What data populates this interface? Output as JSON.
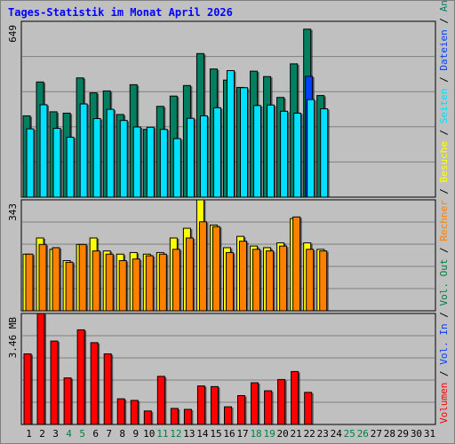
{
  "title": "Tages-Statistik im Monat April 2026",
  "colors": {
    "background": "#c0c0c0",
    "title": "#0000ff",
    "anfragen": "#008060",
    "dateien": "#0040ff",
    "seiten": "#00e0ff",
    "besuche": "#ffff00",
    "rechner": "#ff8000",
    "kbytes": "#ff0000",
    "weekend_label": "#008040",
    "weekday_label": "#000000"
  },
  "chart_data": [
    {
      "type": "bar",
      "panel": "top",
      "ymax_label": "649",
      "ylim": [
        0,
        649
      ],
      "categories": [
        "1",
        "2",
        "3",
        "4",
        "5",
        "6",
        "7",
        "8",
        "9",
        "10",
        "11",
        "12",
        "13",
        "14",
        "15",
        "16",
        "17",
        "18",
        "19",
        "20",
        "21",
        "22",
        "23",
        "24",
        "25",
        "26",
        "27",
        "28",
        "29",
        "30",
        "31"
      ],
      "series": [
        {
          "name": "Anfragen",
          "values": [
            300,
            425,
            315,
            310,
            440,
            385,
            392,
            305,
            415,
            250,
            335,
            373,
            412,
            530,
            473,
            432,
            405,
            465,
            445,
            368,
            492,
            620,
            375,
            0,
            0,
            0,
            0,
            0,
            0,
            0,
            0
          ]
        },
        {
          "name": "Dateien",
          "values": [
            0,
            0,
            0,
            0,
            0,
            0,
            0,
            0,
            0,
            0,
            0,
            0,
            0,
            0,
            0,
            0,
            0,
            0,
            0,
            0,
            0,
            446,
            0,
            0,
            0,
            0,
            0,
            0,
            0,
            0,
            0
          ]
        },
        {
          "name": "Seiten",
          "values": [
            252,
            341,
            254,
            221,
            344,
            290,
            324,
            283,
            259,
            258,
            250,
            216,
            291,
            300,
            330,
            467,
            404,
            338,
            340,
            317,
            310,
            360,
            326,
            0,
            0,
            0,
            0,
            0,
            0,
            0,
            0
          ]
        }
      ]
    },
    {
      "type": "bar",
      "panel": "middle",
      "ymax_label": "343",
      "ylim": [
        0,
        343
      ],
      "categories": [
        "1",
        "2",
        "3",
        "4",
        "5",
        "6",
        "7",
        "8",
        "9",
        "10",
        "11",
        "12",
        "13",
        "14",
        "15",
        "16",
        "17",
        "18",
        "19",
        "20",
        "21",
        "22",
        "23",
        "24",
        "25",
        "26",
        "27",
        "28",
        "29",
        "30",
        "31"
      ],
      "series": [
        {
          "name": "Besuche",
          "values": [
            175,
            225,
            190,
            155,
            205,
            225,
            185,
            175,
            180,
            175,
            180,
            225,
            255,
            343,
            265,
            195,
            230,
            200,
            195,
            210,
            285,
            210,
            190,
            0,
            0,
            0,
            0,
            0,
            0,
            0,
            0
          ]
        },
        {
          "name": "Rechner",
          "values": [
            175,
            205,
            195,
            150,
            205,
            185,
            175,
            155,
            160,
            170,
            175,
            190,
            225,
            275,
            260,
            180,
            215,
            190,
            185,
            200,
            290,
            190,
            185,
            0,
            0,
            0,
            0,
            0,
            0,
            0,
            0
          ]
        }
      ]
    },
    {
      "type": "bar",
      "panel": "bottom",
      "ymax_label": "3.46 MB",
      "ylim": [
        0,
        3.46
      ],
      "categories": [
        "1",
        "2",
        "3",
        "4",
        "5",
        "6",
        "7",
        "8",
        "9",
        "10",
        "11",
        "12",
        "13",
        "14",
        "15",
        "16",
        "17",
        "18",
        "19",
        "20",
        "21",
        "22",
        "23",
        "24",
        "25",
        "26",
        "27",
        "28",
        "29",
        "30",
        "31"
      ],
      "series": [
        {
          "name": "Volumen",
          "values": [
            2.2,
            3.46,
            2.6,
            1.45,
            2.95,
            2.55,
            2.2,
            0.8,
            0.75,
            0.42,
            1.5,
            0.5,
            0.47,
            1.2,
            1.18,
            0.55,
            0.9,
            1.3,
            1.05,
            1.4,
            1.65,
            1.0,
            0,
            0,
            0,
            0,
            0,
            0,
            0,
            0,
            0
          ]
        }
      ]
    }
  ],
  "x_labels": [
    "1",
    "2",
    "3",
    "4",
    "5",
    "6",
    "7",
    "8",
    "9",
    "10",
    "11",
    "12",
    "13",
    "14",
    "15",
    "16",
    "17",
    "18",
    "19",
    "20",
    "21",
    "22",
    "23",
    "24",
    "25",
    "26",
    "27",
    "28",
    "29",
    "30",
    "31"
  ],
  "weekend_days": [
    4,
    5,
    11,
    12,
    18,
    19,
    25,
    26
  ],
  "right_legend": [
    {
      "text": "Anfragen",
      "color": "#008060"
    },
    {
      "text": "Dateien",
      "color": "#0040ff"
    },
    {
      "text": "Seiten",
      "color": "#00e0ff"
    },
    {
      "text": "Besuche",
      "color": "#ffff00"
    },
    {
      "text": "Rechner",
      "color": "#ff8000"
    },
    {
      "text": "Vol. Out",
      "color": "#008040"
    },
    {
      "text": "Vol. In",
      "color": "#0040ff"
    },
    {
      "text": "Volumen",
      "color": "#ff0000"
    }
  ]
}
